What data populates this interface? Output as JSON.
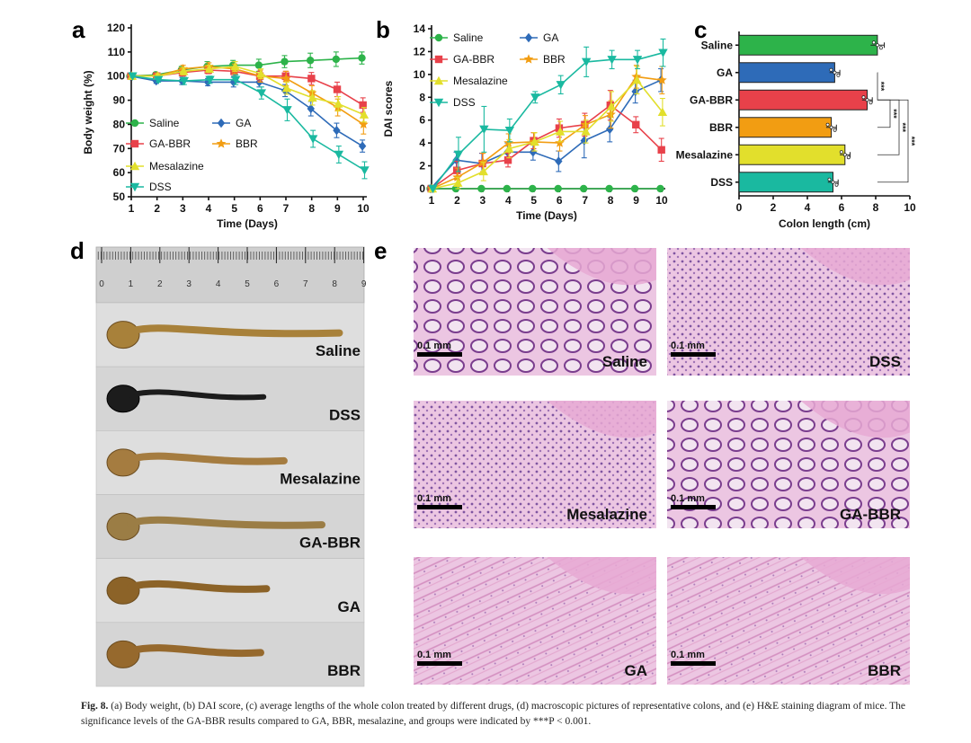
{
  "caption": {
    "label": "Fig. 8.",
    "text": "(a) Body weight, (b) DAI score, (c) average lengths of the whole colon treated by different drugs, (d) macroscopic pictures of representative colons, and (e) H&E staining diagram of mice. The significance levels of the GA-BBR results compared to GA, BBR, mesalazine, and groups were indicated by ***P < 0.001."
  },
  "panel_labels": [
    "a",
    "b",
    "c",
    "d",
    "e"
  ],
  "colors": {
    "Saline": "#2db34a",
    "GA": "#2e6bb8",
    "GA-BBR": "#e8414a",
    "BBR": "#f29d12",
    "Mesalazine": "#e2df2c",
    "DSS": "#1ab9a0"
  },
  "chart_data": [
    {
      "id": "a",
      "type": "line",
      "xlabel": "Time (Days)",
      "ylabel": "Body weight (%)",
      "x": [
        1,
        2,
        3,
        4,
        5,
        6,
        7,
        8,
        9,
        10
      ],
      "xlim": [
        1,
        10
      ],
      "ylim": [
        50,
        120
      ],
      "yticks": [
        50,
        60,
        70,
        80,
        90,
        100,
        110,
        120
      ],
      "legend": "inside-bottom-left",
      "series": [
        {
          "name": "Saline",
          "marker": "circle",
          "values": [
            100,
            100.5,
            102.5,
            104,
            104.5,
            104.5,
            106,
            106.5,
            107,
            107.5
          ],
          "err": [
            0.5,
            1,
            1.5,
            2,
            2,
            2.5,
            2.5,
            3,
            3,
            2.5
          ]
        },
        {
          "name": "GA",
          "marker": "diamond",
          "values": [
            100,
            98,
            98,
            97.5,
            97.5,
            97.5,
            94,
            86.5,
            77.5,
            71
          ],
          "err": [
            0.5,
            1,
            1.5,
            1.5,
            2,
            2,
            2.5,
            3,
            3,
            2.5
          ]
        },
        {
          "name": "GA-BBR",
          "marker": "square",
          "values": [
            100,
            100,
            101.5,
            102.5,
            102,
            100,
            100,
            99,
            94.5,
            88
          ],
          "err": [
            0.5,
            1,
            1.5,
            1.5,
            2,
            2,
            2,
            2.5,
            3,
            3
          ]
        },
        {
          "name": "BBR",
          "marker": "star",
          "values": [
            100,
            100,
            103,
            104,
            103,
            100,
            99,
            93,
            87,
            80
          ],
          "err": [
            0.5,
            1,
            1.5,
            1.5,
            2,
            2.5,
            3,
            3,
            3.5,
            4
          ]
        },
        {
          "name": "Mesalazine",
          "marker": "triangle-up",
          "values": [
            100,
            100,
            102,
            103,
            104,
            101,
            95,
            91,
            88.5,
            84
          ],
          "err": [
            0.5,
            1,
            1.5,
            1.5,
            2,
            2,
            2.5,
            3,
            3,
            3
          ]
        },
        {
          "name": "DSS",
          "marker": "triangle-down",
          "values": [
            100,
            98.5,
            98,
            98.5,
            98.5,
            93,
            86,
            74,
            67.5,
            61
          ],
          "err": [
            0.5,
            1,
            1.5,
            1.5,
            2,
            2.5,
            4.5,
            3.5,
            3.5,
            3.5
          ]
        }
      ]
    },
    {
      "id": "b",
      "type": "line",
      "xlabel": "Time (Days)",
      "ylabel": "DAI scores",
      "x": [
        1,
        2,
        3,
        4,
        5,
        6,
        7,
        8,
        9,
        10
      ],
      "xlim": [
        1,
        10
      ],
      "ylim": [
        0,
        14
      ],
      "yticks": [
        0,
        2,
        4,
        6,
        8,
        10,
        12,
        14
      ],
      "legend": "top-left",
      "series": [
        {
          "name": "Saline",
          "marker": "circle",
          "values": [
            0,
            0,
            0,
            0,
            0,
            0,
            0,
            0,
            0,
            0
          ],
          "err": [
            0,
            0,
            0,
            0,
            0,
            0,
            0,
            0,
            0,
            0
          ]
        },
        {
          "name": "GA",
          "marker": "diamond",
          "values": [
            0,
            2.5,
            2.2,
            3.2,
            3.2,
            2.4,
            4.2,
            5.2,
            8.5,
            9.5
          ],
          "err": [
            0,
            0.7,
            0.9,
            0.8,
            0.7,
            0.9,
            1.5,
            1.1,
            1.0,
            1.0
          ]
        },
        {
          "name": "GA-BBR",
          "marker": "square",
          "values": [
            0,
            1.6,
            2.2,
            2.5,
            4.2,
            5.3,
            5.6,
            7.3,
            5.6,
            3.4
          ],
          "err": [
            0,
            0.8,
            0.9,
            0.6,
            0.7,
            0.8,
            1.0,
            1.3,
            0.7,
            1.0
          ]
        },
        {
          "name": "BBR",
          "marker": "star",
          "values": [
            0,
            1.0,
            2.3,
            4.0,
            4.1,
            4.0,
            5.6,
            6.5,
            9.8,
            9.5
          ],
          "err": [
            0,
            0.8,
            0.8,
            0.8,
            0.8,
            0.7,
            0.8,
            1.2,
            1.0,
            1.2
          ]
        },
        {
          "name": "Mesalazine",
          "marker": "triangle-up",
          "values": [
            0,
            0.5,
            1.5,
            3.5,
            4.1,
            5.0,
            5.0,
            7.2,
            9.5,
            6.7
          ],
          "err": [
            0,
            0.5,
            0.8,
            0.8,
            0.8,
            0.9,
            1.0,
            1.3,
            1.2,
            1.2
          ]
        },
        {
          "name": "DSS",
          "marker": "triangle-down",
          "values": [
            0,
            3.0,
            5.2,
            5.1,
            8.0,
            9.1,
            11.1,
            11.3,
            11.3,
            11.9
          ],
          "err": [
            0,
            1.5,
            2.0,
            1.0,
            0.5,
            0.8,
            1.3,
            0.8,
            0.8,
            1.2
          ]
        }
      ]
    },
    {
      "id": "c",
      "type": "bar",
      "orientation": "horizontal",
      "xlabel": "Colon length (cm)",
      "ylabel": "",
      "categories": [
        "Saline",
        "GA",
        "GA-BBR",
        "BBR",
        "Mesalazine",
        "DSS"
      ],
      "values": [
        8.1,
        5.6,
        7.5,
        5.4,
        6.2,
        5.5
      ],
      "err": [
        0.4,
        0.3,
        0.3,
        0.3,
        0.3,
        0.3
      ],
      "xlim": [
        0,
        10
      ],
      "xticks": [
        0,
        2,
        4,
        6,
        8,
        10
      ],
      "significance": [
        {
          "from": "GA-BBR",
          "to": "GA",
          "label": "***"
        },
        {
          "from": "GA-BBR",
          "to": "BBR",
          "label": "***"
        },
        {
          "from": "GA-BBR",
          "to": "Mesalazine",
          "label": "***"
        },
        {
          "from": "GA-BBR",
          "to": "DSS",
          "label": "***"
        }
      ]
    }
  ],
  "panel_d": {
    "ruler_numbers": [
      "0",
      "1",
      "2",
      "3",
      "4",
      "5",
      "6",
      "7",
      "8",
      "9"
    ],
    "groups": [
      {
        "label": "Saline",
        "length_cm": 8.1,
        "color": "#a8813a",
        "dark": false
      },
      {
        "label": "DSS",
        "length_cm": 5.5,
        "color": "#1c1c1c",
        "dark": true
      },
      {
        "label": "Mesalazine",
        "length_cm": 6.2,
        "color": "#a57c40",
        "dark": false
      },
      {
        "label": "GA-BBR",
        "length_cm": 7.5,
        "color": "#9b7d45",
        "dark": false
      },
      {
        "label": "GA",
        "length_cm": 5.6,
        "color": "#8c6328",
        "dark": false
      },
      {
        "label": "BBR",
        "length_cm": 5.4,
        "color": "#96692d",
        "dark": false
      }
    ]
  },
  "panel_e": {
    "scale_label": "0.1 mm",
    "images": [
      "Saline",
      "DSS",
      "Mesalazine",
      "GA-BBR",
      "GA",
      "BBR"
    ]
  }
}
